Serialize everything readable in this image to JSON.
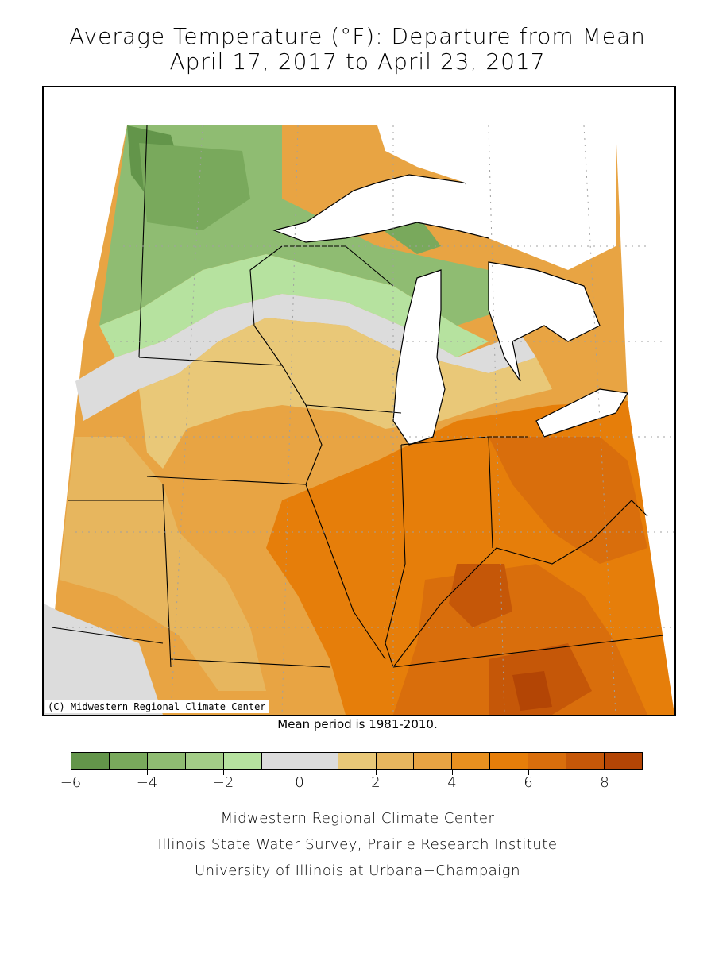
{
  "title": {
    "line1": "Average Temperature (°F): Departure from Mean",
    "line2": "April 17, 2017 to April 23, 2017"
  },
  "map": {
    "copyright": "(C) Midwestern Regional Climate Center",
    "mean_period_note": "Mean period is 1981-2010."
  },
  "legend": {
    "bins": [
      {
        "range": [
          -6,
          -5
        ],
        "color": "#63954a"
      },
      {
        "range": [
          -5,
          -4
        ],
        "color": "#79a95c"
      },
      {
        "range": [
          -4,
          -3
        ],
        "color": "#8fbc72"
      },
      {
        "range": [
          -3,
          -2
        ],
        "color": "#a3cd87"
      },
      {
        "range": [
          -2,
          -1
        ],
        "color": "#b6e29f"
      },
      {
        "range": [
          -1,
          0
        ],
        "color": "#dcdcdc"
      },
      {
        "range": [
          0,
          1
        ],
        "color": "#dcdcdc"
      },
      {
        "range": [
          1,
          2
        ],
        "color": "#e9c878"
      },
      {
        "range": [
          2,
          3
        ],
        "color": "#e7b65e"
      },
      {
        "range": [
          3,
          4
        ],
        "color": "#e8a443"
      },
      {
        "range": [
          4,
          5
        ],
        "color": "#e8901f"
      },
      {
        "range": [
          5,
          6
        ],
        "color": "#e67e0a"
      },
      {
        "range": [
          6,
          7
        ],
        "color": "#d96e0c"
      },
      {
        "range": [
          7,
          8
        ],
        "color": "#c55708"
      },
      {
        "range": [
          8,
          9
        ],
        "color": "#b34505"
      }
    ],
    "tick_labels": [
      "−6",
      "−4",
      "−2",
      "0",
      "2",
      "4",
      "6",
      "8"
    ]
  },
  "credits": {
    "line1": "Midwestern Regional Climate Center",
    "line2": "Illinois State Water Survey, Prairie Research Institute",
    "line3": "University of Illinois at Urbana−Champaign"
  }
}
